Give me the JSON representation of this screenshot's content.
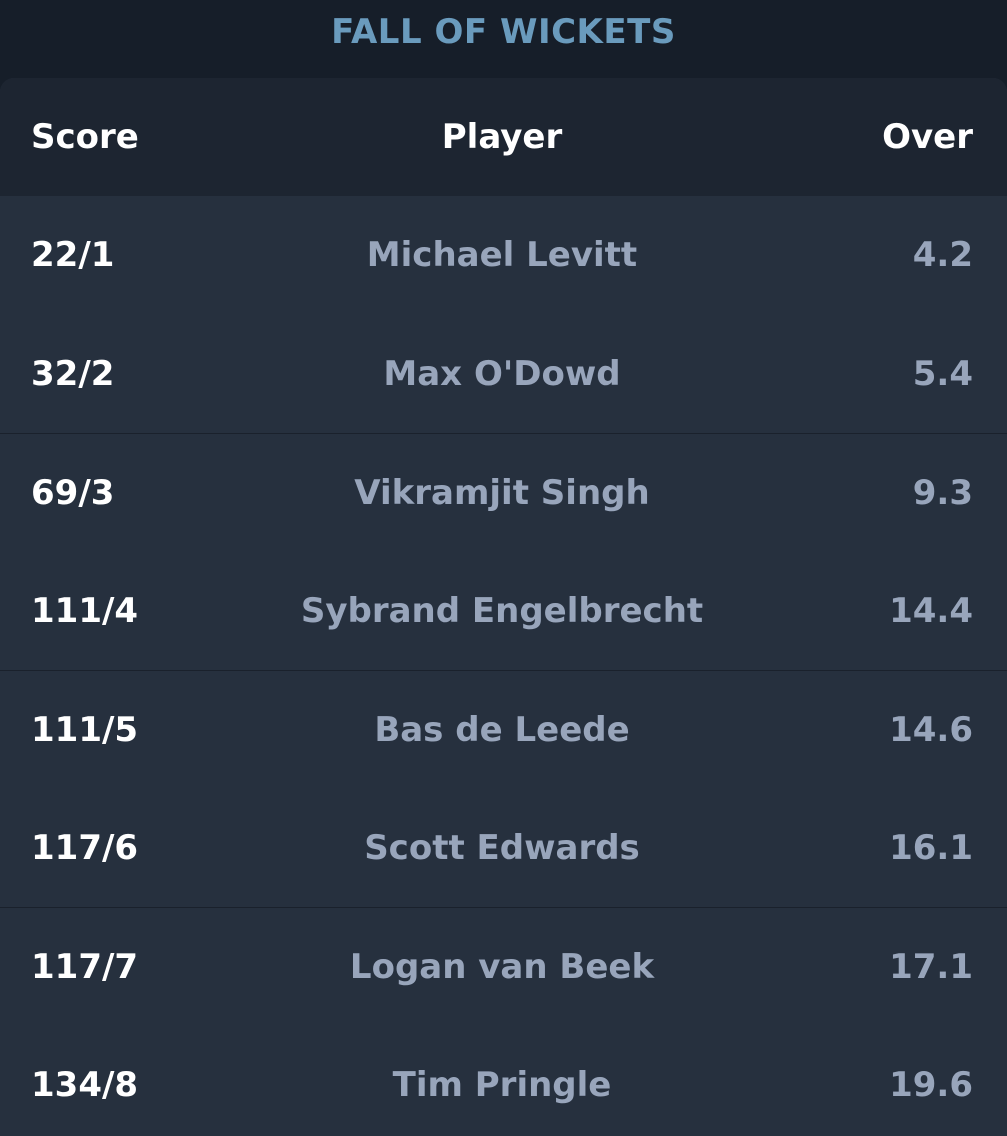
{
  "section": {
    "title": "FALL OF WICKETS"
  },
  "table": {
    "headers": {
      "score": "Score",
      "player": "Player",
      "over": "Over"
    },
    "rows": [
      {
        "score": "22/1",
        "player": "Michael Levitt",
        "over": "4.2"
      },
      {
        "score": "32/2",
        "player": "Max O'Dowd",
        "over": "5.4"
      },
      {
        "score": "69/3",
        "player": "Vikramjit Singh",
        "over": "9.3"
      },
      {
        "score": "111/4",
        "player": "Sybrand Engelbrecht",
        "over": "14.4"
      },
      {
        "score": "111/5",
        "player": "Bas de Leede",
        "over": "14.6"
      },
      {
        "score": "117/6",
        "player": "Scott Edwards",
        "over": "16.1"
      },
      {
        "score": "117/7",
        "player": "Logan van Beek",
        "over": "17.1"
      },
      {
        "score": "134/8",
        "player": "Tim Pringle",
        "over": "19.6"
      }
    ]
  }
}
